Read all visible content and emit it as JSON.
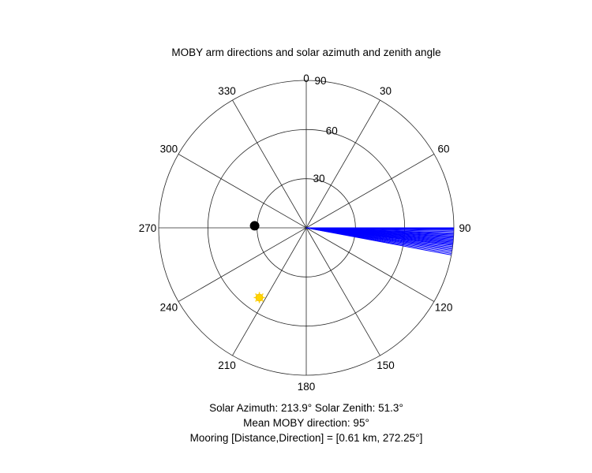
{
  "chart_data": {
    "type": "polar-scatter",
    "title": "MOBY arm directions and solar azimuth and zenith angle",
    "angle_zero": "top",
    "angle_direction": "clockwise",
    "angle_ticks": [
      0,
      30,
      60,
      90,
      120,
      150,
      180,
      210,
      240,
      270,
      300,
      330
    ],
    "angle_tick_labels": [
      "0",
      "30",
      "60",
      "90",
      "120",
      "150",
      "180",
      "210",
      "240",
      "270",
      "300",
      "330"
    ],
    "radial_max": 90,
    "radial_ticks": [
      30,
      60,
      90
    ],
    "radial_tick_labels": [
      "30",
      "60",
      "90"
    ],
    "grid": true,
    "series": [
      {
        "kind": "arm-directions",
        "color": "#0000ff",
        "angles_deg": [
          90.0,
          90.3,
          90.6,
          91.0,
          91.5,
          92.0,
          92.4,
          92.8,
          93.2,
          93.6,
          94.0,
          94.4,
          94.8,
          95.2,
          95.6,
          96.0,
          96.4,
          96.8,
          97.3,
          97.8,
          98.3,
          98.8,
          99.4,
          100.0,
          100.6
        ],
        "radius": 90
      },
      {
        "kind": "sun",
        "color": "#ffd500",
        "azimuth_deg": 213.9,
        "zenith_deg": 51.3
      },
      {
        "kind": "mooring",
        "color": "#000000",
        "direction_deg": 272.25,
        "radius": 31.5
      }
    ]
  },
  "captions": {
    "solar": "Solar Azimuth: 213.9°    Solar Zenith: 51.3°",
    "mean_direction": "Mean MOBY direction: 95°",
    "mooring": "Mooring [Distance,Direction] = [0.61 km, 272.25°]"
  }
}
